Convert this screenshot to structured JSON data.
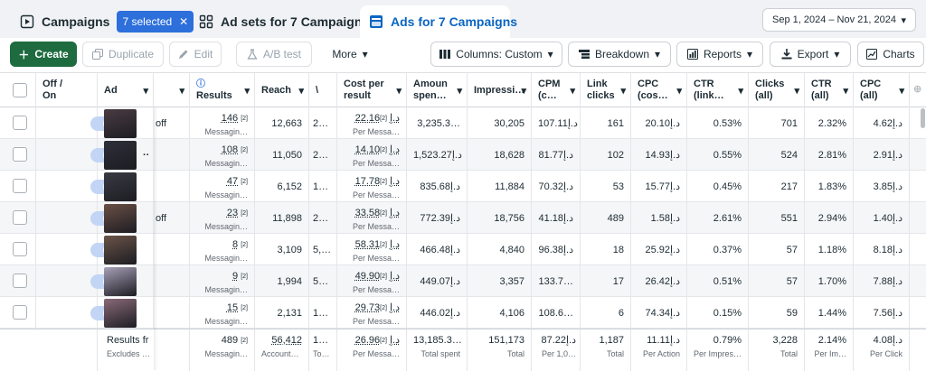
{
  "tabs": {
    "campaigns": {
      "label": "Campaigns",
      "badge": "7 selected"
    },
    "adsets": {
      "label": "Ad sets for 7 Campaigns"
    },
    "ads": {
      "label": "Ads for 7 Campaigns"
    }
  },
  "date_range": "Sep 1, 2024 – Nov 21, 2024",
  "toolbar": {
    "create": "Create",
    "duplicate": "Duplicate",
    "edit": "Edit",
    "ab_test": "A/B test",
    "more": "More",
    "columns": "Columns: Custom",
    "breakdown": "Breakdown",
    "reports": "Reports",
    "export": "Export",
    "charts": "Charts"
  },
  "headers": {
    "offon": [
      "Off /",
      "On"
    ],
    "ad": "Ad",
    "results": "Results",
    "reach": "Reach",
    "freq": "\\",
    "cost_per_result": [
      "Cost per",
      "result"
    ],
    "amount_spent": [
      "Amoun",
      "spen…"
    ],
    "impressions": "Impressi…",
    "cpm": [
      "CPM",
      "(c…"
    ],
    "link_clicks": [
      "Link",
      "clicks"
    ],
    "cpc_cost": [
      "CPC",
      "(cos…"
    ],
    "ctr_link": [
      "CTR",
      "(link…"
    ],
    "clicks_all": [
      "Clicks",
      "(all)"
    ],
    "ctr_all": [
      "CTR",
      "(all)"
    ],
    "cpc_all": [
      "CPC",
      "(all)"
    ]
  },
  "rows": [
    {
      "name_tail": "off",
      "results": "146",
      "results_sub": "Messagin…",
      "reach": "12,663",
      "freq": "2…",
      "cpr": "22.16د.إ",
      "cpr_sub": "Per Messa…",
      "spent": "3,235.3…",
      "impr": "30,205",
      "cpm": "107.11د.إ",
      "link": "161",
      "cpc": "20.10د.إ",
      "ctr_link": "0.53%",
      "clicks": "701",
      "ctr_all": "2.32%",
      "cpc_all": "4.62د.إ"
    },
    {
      "name_tail": "",
      "results": "108",
      "results_sub": "Messagin…",
      "reach": "11,050",
      "freq": "2…",
      "cpr": "14.10د.إ",
      "cpr_sub": "Per Messa…",
      "spent": "1,523.27د.إ",
      "impr": "18,628",
      "cpm": "81.77د.إ",
      "link": "102",
      "cpc": "14.93د.إ",
      "ctr_link": "0.55%",
      "clicks": "524",
      "ctr_all": "2.81%",
      "cpc_all": "2.91د.إ"
    },
    {
      "name_tail": "",
      "results": "47",
      "results_sub": "Messagin…",
      "reach": "6,152",
      "freq": "1…",
      "cpr": "17.78د.إ",
      "cpr_sub": "Per Messa…",
      "spent": "835.68د.إ",
      "impr": "11,884",
      "cpm": "70.32د.إ",
      "link": "53",
      "cpc": "15.77د.إ",
      "ctr_link": "0.45%",
      "clicks": "217",
      "ctr_all": "1.83%",
      "cpc_all": "3.85د.إ"
    },
    {
      "name_tail": "off",
      "results": "23",
      "results_sub": "Messagin…",
      "reach": "11,898",
      "freq": "2…",
      "cpr": "33.58د.إ",
      "cpr_sub": "Per Messa…",
      "spent": "772.39د.إ",
      "impr": "18,756",
      "cpm": "41.18د.إ",
      "link": "489",
      "cpc": "1.58د.إ",
      "ctr_link": "2.61%",
      "clicks": "551",
      "ctr_all": "2.94%",
      "cpc_all": "1.40د.إ"
    },
    {
      "name_tail": "",
      "results": "8",
      "results_sub": "Messagin…",
      "reach": "3,109",
      "freq": "5,…",
      "cpr": "58.31د.إ",
      "cpr_sub": "Per Messa…",
      "spent": "466.48د.إ",
      "impr": "4,840",
      "cpm": "96.38د.إ",
      "link": "18",
      "cpc": "25.92د.إ",
      "ctr_link": "0.37%",
      "clicks": "57",
      "ctr_all": "1.18%",
      "cpc_all": "8.18د.إ"
    },
    {
      "name_tail": "",
      "results": "9",
      "results_sub": "Messagin…",
      "reach": "1,994",
      "freq": "5…",
      "cpr": "49.90د.إ",
      "cpr_sub": "Per Messa…",
      "spent": "449.07د.إ",
      "impr": "3,357",
      "cpm": "133.7…",
      "link": "17",
      "cpc": "26.42د.إ",
      "ctr_link": "0.51%",
      "clicks": "57",
      "ctr_all": "1.70%",
      "cpc_all": "7.88د.إ"
    },
    {
      "name_tail": "",
      "results": "15",
      "results_sub": "Messagin…",
      "reach": "2,131",
      "freq": "1…",
      "cpr": "29.73د.إ",
      "cpr_sub": "Per Messa…",
      "spent": "446.02د.إ",
      "impr": "4,106",
      "cpm": "108.6…",
      "link": "6",
      "cpc": "74.34د.إ",
      "ctr_link": "0.15%",
      "clicks": "59",
      "ctr_all": "1.44%",
      "cpc_all": "7.56د.إ"
    }
  ],
  "footer": {
    "name": "Results fr",
    "name_sub": "Excludes …",
    "results": "489",
    "results_sub": "Messagin…",
    "reach": "56,412",
    "reach_sub": "Accounts…",
    "freq": "1…",
    "freq_sub": "To…",
    "cpr": "26.96د.إ",
    "cpr_sub": "Per Messa…",
    "spent": "13,185.3…",
    "spent_sub": "Total spent",
    "impr": "151,173",
    "impr_sub": "Total",
    "cpm": "87.22د.إ",
    "cpm_sub": "Per 1,0…",
    "link": "1,187",
    "link_sub": "Total",
    "cpc": "11.11د.إ",
    "cpc_sub": "Per Action",
    "ctr_link": "0.79%",
    "ctr_link_sub": "Per Impres…",
    "clicks": "3,228",
    "clicks_sub": "Total",
    "ctr_all": "2.14%",
    "ctr_all_sub": "Per Im…",
    "cpc_all": "4.08د.إ",
    "cpc_all_sub": "Per Click"
  },
  "sup_mark": "[2]",
  "thumb_colors": [
    "#4a3c42",
    "#2f2f3a",
    "#3a3a44",
    "#6b5046",
    "#6b5448",
    "#a8a0b8",
    "#8a6a78"
  ]
}
